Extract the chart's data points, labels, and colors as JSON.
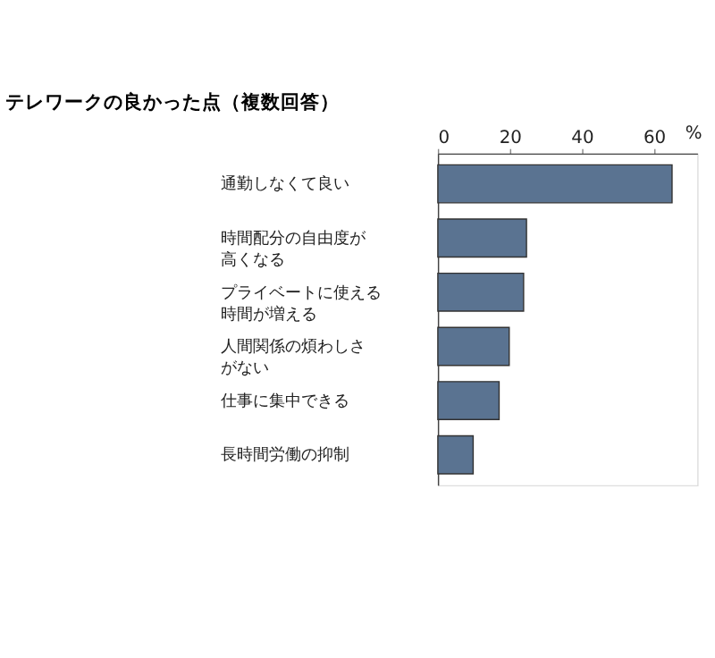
{
  "chart_data": {
    "type": "bar",
    "orientation": "horizontal",
    "title": "テレワークの良かった点（複数回答）",
    "xlabel": "%",
    "categories": [
      "通勤しなくて良い",
      "時間配分の自由度が高くなる",
      "プライベートに使える時間が増える",
      "人間関係の煩わしさがない",
      "仕事に集中できる",
      "長時間労働の抑制"
    ],
    "values": [
      65,
      24.6,
      23.8,
      19.8,
      17,
      9.8
    ],
    "color": "#5a7391",
    "xlim": [
      0,
      72
    ],
    "xticks": [
      0,
      20,
      40,
      60
    ],
    "grid": false
  }
}
